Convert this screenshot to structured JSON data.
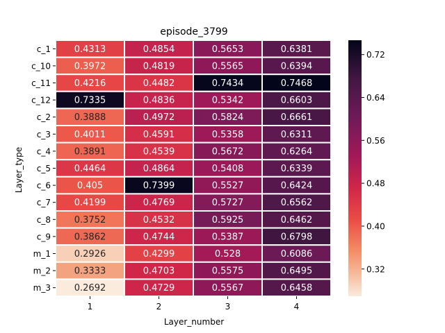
{
  "chart_data": {
    "type": "heatmap",
    "title": "episode_3799",
    "xlabel": "Layer_number",
    "ylabel": "Layer_type",
    "x_categories": [
      "1",
      "2",
      "3",
      "4"
    ],
    "y_categories": [
      "c_1",
      "c_10",
      "c_11",
      "c_12",
      "c_2",
      "c_3",
      "c_4",
      "c_5",
      "c_6",
      "c_7",
      "c_8",
      "c_9",
      "m_1",
      "m_2",
      "m_3"
    ],
    "cells": [
      [
        "0.4313",
        "0.4854",
        "0.5653",
        "0.6381"
      ],
      [
        "0.3972",
        "0.4819",
        "0.5565",
        "0.6394"
      ],
      [
        "0.4216",
        "0.4482",
        "0.7434",
        "0.7468"
      ],
      [
        "0.7335",
        "0.4836",
        "0.5342",
        "0.6603"
      ],
      [
        "0.3888",
        "0.4972",
        "0.5824",
        "0.6661"
      ],
      [
        "0.4011",
        "0.4591",
        "0.5358",
        "0.6311"
      ],
      [
        "0.3891",
        "0.4539",
        "0.5672",
        "0.6264"
      ],
      [
        "0.4464",
        "0.4864",
        "0.5408",
        "0.6339"
      ],
      [
        "0.405",
        "0.7399",
        "0.5527",
        "0.6424"
      ],
      [
        "0.4199",
        "0.4769",
        "0.5727",
        "0.6562"
      ],
      [
        "0.3752",
        "0.4532",
        "0.5925",
        "0.6462"
      ],
      [
        "0.3862",
        "0.4744",
        "0.5387",
        "0.6798"
      ],
      [
        "0.2926",
        "0.4299",
        "0.528",
        "0.6086"
      ],
      [
        "0.3333",
        "0.4703",
        "0.5575",
        "0.6495"
      ],
      [
        "0.2692",
        "0.4729",
        "0.5567",
        "0.6458"
      ]
    ],
    "colorbar": {
      "min": 0.2692,
      "max": 0.7468,
      "ticks": [
        "0.32",
        "0.40",
        "0.48",
        "0.56",
        "0.64",
        "0.72"
      ]
    },
    "colormap": "rocket_r",
    "grid": false
  }
}
